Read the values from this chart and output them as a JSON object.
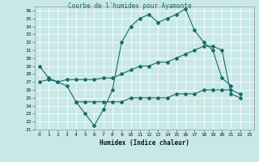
{
  "title": "Courbe de l'humidex pour Ayamonte",
  "xlabel": "Humidex (Indice chaleur)",
  "bg_color": "#c8e8e8",
  "line_color": "#1a6b6b",
  "xlim_min": -0.5,
  "xlim_max": 23.5,
  "ylim_min": 21,
  "ylim_max": 36.5,
  "xticks": [
    0,
    1,
    2,
    3,
    4,
    5,
    6,
    7,
    8,
    9,
    10,
    11,
    12,
    13,
    14,
    15,
    16,
    17,
    18,
    19,
    20,
    21,
    22,
    23
  ],
  "yticks": [
    21,
    22,
    23,
    24,
    25,
    26,
    27,
    28,
    29,
    30,
    31,
    32,
    33,
    34,
    35,
    36
  ],
  "line1_x": [
    0,
    1,
    2,
    3,
    4,
    5,
    6,
    7,
    8,
    9,
    10,
    11,
    12,
    13,
    14,
    15,
    16,
    17,
    18,
    19,
    20,
    21
  ],
  "line1_y": [
    29.0,
    27.5,
    27.0,
    26.5,
    24.5,
    23.0,
    21.5,
    23.5,
    26.0,
    32.0,
    34.0,
    35.0,
    35.5,
    34.5,
    35.0,
    35.5,
    36.2,
    33.5,
    32.0,
    31.0,
    27.5,
    26.5
  ],
  "line2_x": [
    0,
    1,
    2,
    3,
    4,
    5,
    6,
    7,
    8,
    9,
    10,
    11,
    12,
    13,
    14,
    15,
    16,
    17,
    18,
    19,
    20,
    21,
    22
  ],
  "line2_y": [
    27.0,
    27.3,
    27.0,
    27.3,
    27.3,
    27.3,
    27.3,
    27.5,
    27.5,
    28.0,
    28.5,
    29.0,
    29.0,
    29.5,
    29.5,
    30.0,
    30.5,
    31.0,
    31.5,
    31.5,
    31.0,
    25.5,
    25.0
  ],
  "line3_x": [
    4,
    5,
    6,
    7,
    8,
    9,
    10,
    11,
    12,
    13,
    14,
    15,
    16,
    17,
    18,
    19,
    20,
    21,
    22
  ],
  "line3_y": [
    24.5,
    24.5,
    24.5,
    24.5,
    24.5,
    24.5,
    25.0,
    25.0,
    25.0,
    25.0,
    25.0,
    25.5,
    25.5,
    25.5,
    26.0,
    26.0,
    26.0,
    26.0,
    25.5
  ],
  "title_fontsize": 5.5,
  "xlabel_fontsize": 5.5,
  "tick_fontsize": 4.5
}
